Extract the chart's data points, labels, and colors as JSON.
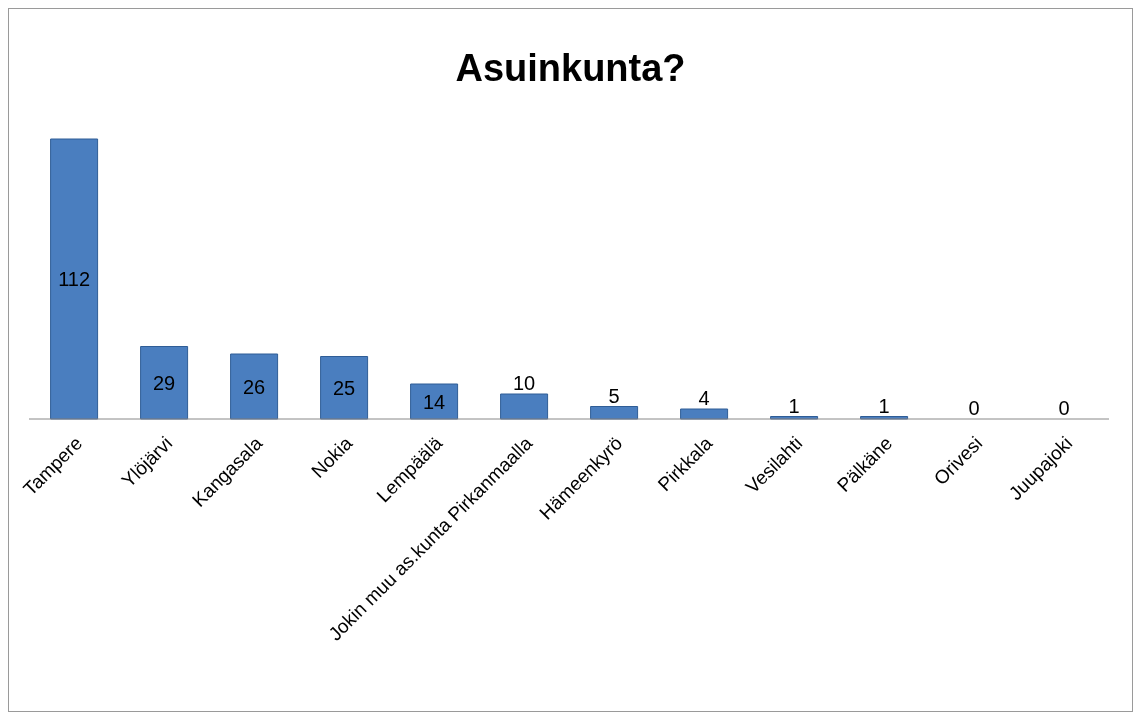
{
  "chart_data": {
    "type": "bar",
    "title": "Asuinkunta?",
    "categories": [
      "Tampere",
      "Ylöjärvi",
      "Kangasala",
      "Nokia",
      "Lempäälä",
      "Jokin muu as.kunta Pirkanmaalla",
      "Hämeenkyrö",
      "Pirkkala",
      "Vesilahti",
      "Pälkäne",
      "Orivesi",
      "Juupajoki"
    ],
    "values": [
      112,
      29,
      26,
      25,
      14,
      10,
      5,
      4,
      1,
      1,
      0,
      0
    ],
    "color": "#4a7ebf",
    "data_labels": true,
    "grid": false,
    "legend": false
  }
}
